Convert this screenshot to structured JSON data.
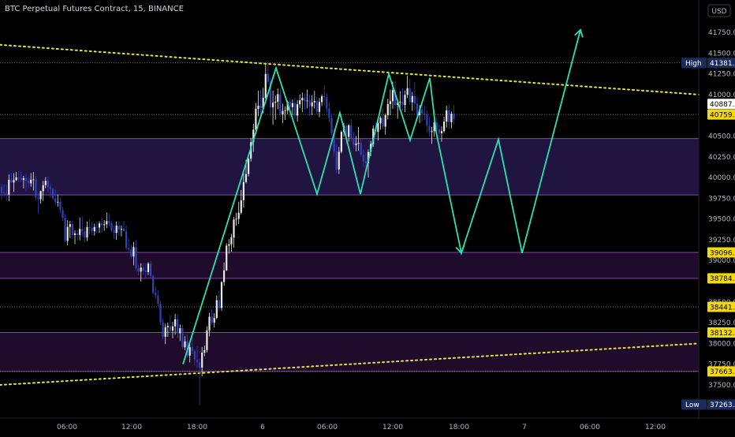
{
  "header": {
    "title": "BTC Perpetual Futures Contract, 15, BINANCE"
  },
  "axis": {
    "currency": "USD"
  },
  "chart_data": {
    "type": "candlestick",
    "symbol": "BTC Perpetual Futures Contract",
    "interval": "15",
    "exchange": "BINANCE",
    "ylim": [
      37150,
      41940
    ],
    "y_ticks": [
      41750,
      41500,
      41250,
      41000,
      40750,
      40500,
      40250,
      40000,
      39750,
      39500,
      39250,
      39000,
      38750,
      38500,
      38250,
      38000,
      37750,
      37500
    ],
    "y_tick_labels": [
      "41750.0",
      "41500.0",
      "41250.0",
      "41000.0",
      "40750.0",
      "40500.0",
      "40250.0",
      "40000.0",
      "39750.0",
      "39500.0",
      "39250.0",
      "39000.0",
      "38750.0",
      "38500.0",
      "38250.0",
      "38000.0",
      "37750.0",
      "37500.0"
    ],
    "x_tick_labels": [
      "06:00",
      "12:00",
      "18:00",
      "6",
      "06:00",
      "12:00",
      "18:00",
      "7",
      "06:00",
      "12:00"
    ],
    "price_tags": [
      {
        "label": "High",
        "value": "41381.7",
        "price": 41381.7,
        "style": "navy"
      },
      {
        "label": "",
        "value": "40887.3",
        "price": 40887.3,
        "style": "white"
      },
      {
        "label": "",
        "value": "40759.7",
        "price": 40759.7,
        "style": "yellow"
      },
      {
        "label": "",
        "value": "39096.9",
        "price": 39096.9,
        "style": "yellow"
      },
      {
        "label": "",
        "value": "38784.2",
        "price": 38784.2,
        "style": "yellow"
      },
      {
        "label": "",
        "value": "38441.2",
        "price": 38441.2,
        "style": "yellow"
      },
      {
        "label": "",
        "value": "38132.7",
        "price": 38132.7,
        "style": "yellow"
      },
      {
        "label": "",
        "value": "37663.4",
        "price": 37663.4,
        "style": "yellow"
      },
      {
        "label": "Low",
        "value": "37263.4",
        "price": 37263.4,
        "style": "navy"
      }
    ],
    "horizontal_levels": [
      41381.7,
      40759.7,
      38441.2,
      37663.4
    ],
    "zones": [
      {
        "top": 40470,
        "bottom": 39790,
        "color": "#2b1b55"
      },
      {
        "top": 39096.9,
        "bottom": 38784.2,
        "color": "#2a1038"
      },
      {
        "top": 38132.7,
        "bottom": 37663.4,
        "color": "#2a1038"
      }
    ],
    "trendlines": [
      {
        "name": "upper",
        "color": "#e8e23a",
        "points": [
          [
            0,
            41600
          ],
          [
            886,
            41000
          ]
        ]
      },
      {
        "name": "lower",
        "color": "#e8e23a",
        "points": [
          [
            0,
            37500
          ],
          [
            886,
            38000
          ]
        ]
      }
    ],
    "pattern_path": [
      [
        232,
        37750
      ],
      [
        350,
        41320
      ],
      [
        402,
        39800
      ],
      [
        431,
        40780
      ],
      [
        457,
        39800
      ],
      [
        493,
        41250
      ],
      [
        520,
        40450
      ],
      [
        545,
        41200
      ],
      [
        553,
        40550
      ],
      [
        585,
        39090
      ],
      [
        632,
        40460
      ],
      [
        662,
        39090
      ],
      [
        736,
        41780
      ]
    ],
    "pattern_color": "#2de0b2",
    "candles": [
      [
        39887,
        39928,
        39728,
        39817
      ],
      [
        39817,
        39917,
        39762,
        39810
      ],
      [
        39810,
        39912,
        39720,
        39794
      ],
      [
        39794,
        40037,
        39717,
        39973
      ],
      [
        39973,
        40052,
        39935,
        39940
      ],
      [
        39940,
        40053,
        39828,
        39969
      ],
      [
        39969,
        40067,
        39958,
        40001
      ],
      [
        40001,
        40076,
        39944,
        39993
      ],
      [
        39993,
        40068,
        39942,
        39971
      ],
      [
        39971,
        40021,
        39869,
        39992
      ],
      [
        39992,
        40038,
        39831,
        39962
      ],
      [
        39962,
        40004,
        39878,
        39931
      ],
      [
        39931,
        40053,
        39889,
        39974
      ],
      [
        39974,
        40066,
        39844,
        39977
      ],
      [
        39977,
        40023,
        39726,
        39756
      ],
      [
        39756,
        39810,
        39567,
        39739
      ],
      [
        39739,
        39842,
        39685,
        39836
      ],
      [
        39836,
        39960,
        39719,
        39908
      ],
      [
        39908,
        40005,
        39871,
        39961
      ],
      [
        39961,
        40013,
        39821,
        39881
      ],
      [
        39881,
        39938,
        39751,
        39860
      ],
      [
        39860,
        39876,
        39725,
        39749
      ],
      [
        39749,
        39857,
        39665,
        39705
      ],
      [
        39705,
        39795,
        39648,
        39706
      ],
      [
        39706,
        39758,
        39568,
        39606
      ],
      [
        39606,
        39646,
        39478,
        39515
      ],
      [
        39515,
        39563,
        39216,
        39236
      ],
      [
        39236,
        39485,
        39183,
        39405
      ],
      [
        39405,
        39478,
        39270,
        39437
      ],
      [
        39437,
        39480,
        39264,
        39307
      ],
      [
        39307,
        39365,
        39196,
        39327
      ],
      [
        39327,
        39364,
        39247,
        39308
      ],
      [
        39308,
        39520,
        39243,
        39380
      ],
      [
        39380,
        39528,
        39291,
        39352
      ],
      [
        39352,
        39400,
        39219,
        39277
      ],
      [
        39277,
        39470,
        39233,
        39403
      ],
      [
        39403,
        39498,
        39315,
        39391
      ],
      [
        39391,
        39467,
        39305,
        39353
      ],
      [
        39353,
        39444,
        39300,
        39403
      ],
      [
        39403,
        39471,
        39325,
        39398
      ],
      [
        39398,
        39474,
        39333,
        39446
      ],
      [
        39446,
        39521,
        39334,
        39426
      ],
      [
        39426,
        39486,
        39358,
        39436
      ],
      [
        39436,
        39579,
        39390,
        39476
      ],
      [
        39476,
        39563,
        39409,
        39453
      ],
      [
        39453,
        39483,
        39344,
        39360
      ],
      [
        39360,
        39422,
        39260,
        39334
      ],
      [
        39334,
        39470,
        39248,
        39421
      ],
      [
        39421,
        39473,
        39297,
        39371
      ],
      [
        39371,
        39420,
        39290,
        39382
      ],
      [
        39382,
        39474,
        39347,
        39355
      ],
      [
        39355,
        39423,
        39126,
        39150
      ],
      [
        39150,
        39263,
        39100,
        39131
      ],
      [
        39131,
        39191,
        39026,
        39048
      ],
      [
        39048,
        39224,
        38943,
        39162
      ],
      [
        39162,
        39246,
        38872,
        38906
      ],
      [
        38906,
        38948,
        38823,
        38867
      ],
      [
        38867,
        38968,
        38747,
        38914
      ],
      [
        38914,
        38969,
        38827,
        38873
      ],
      [
        38873,
        38968,
        38792,
        38860
      ],
      [
        38860,
        38981,
        38825,
        38962
      ],
      [
        38962,
        38999,
        38785,
        38813
      ],
      [
        38813,
        38833,
        38594,
        38610
      ],
      [
        38610,
        38691,
        38543,
        38580
      ],
      [
        38580,
        38641,
        38450,
        38476
      ],
      [
        38476,
        38516,
        38219,
        38252
      ],
      [
        38252,
        38301,
        38052,
        38081
      ],
      [
        38081,
        38238,
        37993,
        38195
      ],
      [
        38195,
        38250,
        38080,
        38211
      ],
      [
        38211,
        38345,
        38107,
        38154
      ],
      [
        38154,
        38260,
        38062,
        38206
      ],
      [
        38206,
        38358,
        38105,
        38292
      ],
      [
        38292,
        38351,
        38066,
        38123
      ],
      [
        38123,
        38229,
        38031,
        38184
      ],
      [
        38184,
        38226,
        37930,
        37955
      ],
      [
        37955,
        38087,
        37920,
        38026
      ],
      [
        38026,
        38112,
        37829,
        37853
      ],
      [
        37853,
        37995,
        37772,
        37955
      ],
      [
        37955,
        38097,
        37871,
        37906
      ],
      [
        37906,
        37932,
        37737,
        37806
      ],
      [
        37806,
        37963,
        37699,
        37772
      ],
      [
        37772,
        37817,
        37262,
        37709
      ],
      [
        37709,
        37957,
        37605,
        37890
      ],
      [
        37890,
        37974,
        37845,
        37920
      ],
      [
        37920,
        38208,
        37893,
        38157
      ],
      [
        38157,
        38370,
        38085,
        38322
      ],
      [
        38322,
        38412,
        38220,
        38252
      ],
      [
        38252,
        38365,
        38192,
        38306
      ],
      [
        38306,
        38580,
        38293,
        38522
      ],
      [
        38522,
        38638,
        38381,
        38428
      ],
      [
        38428,
        38753,
        38393,
        38740
      ],
      [
        38740,
        38977,
        38694,
        38882
      ],
      [
        38882,
        39208,
        38872,
        39178
      ],
      [
        39178,
        39256,
        39083,
        39196
      ],
      [
        39196,
        39322,
        39104,
        39278
      ],
      [
        39278,
        39525,
        39154,
        39493
      ],
      [
        39493,
        39575,
        39417,
        39502
      ],
      [
        39502,
        39707,
        39440,
        39576
      ],
      [
        39576,
        39849,
        39552,
        39725
      ],
      [
        39725,
        40061,
        39638,
        39947
      ],
      [
        39947,
        40213,
        39931,
        40043
      ],
      [
        40043,
        40269,
        40013,
        40226
      ],
      [
        40226,
        40475,
        40192,
        40426
      ],
      [
        40426,
        40646,
        40310,
        40577
      ],
      [
        40577,
        40899,
        40524,
        40828
      ],
      [
        40828,
        41048,
        40740,
        40866
      ],
      [
        40866,
        41056,
        40743,
        40837
      ],
      [
        40837,
        41081,
        40775,
        40960
      ],
      [
        40960,
        41366,
        40910,
        41249
      ],
      [
        41249,
        41382,
        41119,
        41155
      ],
      [
        41155,
        41207,
        40738,
        40846
      ],
      [
        40846,
        41047,
        40636,
        40902
      ],
      [
        40902,
        40988,
        40697,
        40914
      ],
      [
        40914,
        41072,
        40824,
        41004
      ],
      [
        41004,
        41078,
        40730,
        40761
      ],
      [
        40761,
        40889,
        40654,
        40803
      ],
      [
        40803,
        40859,
        40695,
        40810
      ],
      [
        40810,
        40928,
        40765,
        40912
      ],
      [
        40912,
        40958,
        40727,
        40848
      ],
      [
        40848,
        40941,
        40750,
        40896
      ],
      [
        40896,
        40962,
        40700,
        40748
      ],
      [
        40748,
        40931,
        40673,
        40883
      ],
      [
        40883,
        41002,
        40839,
        40931
      ],
      [
        40931,
        41024,
        40788,
        40960
      ],
      [
        40960,
        41010,
        40819,
        40920
      ],
      [
        40920,
        41059,
        40835,
        40928
      ],
      [
        40928,
        41000,
        40742,
        40859
      ],
      [
        40859,
        40991,
        40752,
        40906
      ],
      [
        40906,
        41044,
        40831,
        40923
      ],
      [
        40923,
        40975,
        40759,
        40792
      ],
      [
        40792,
        40958,
        40725,
        40910
      ],
      [
        40910,
        41003,
        40862,
        40979
      ],
      [
        40979,
        41111,
        40873,
        40968
      ],
      [
        40968,
        41011,
        40781,
        40832
      ],
      [
        40832,
        40906,
        40666,
        40718
      ],
      [
        40718,
        40763,
        40506,
        40536
      ],
      [
        40536,
        40597,
        40260,
        40315
      ],
      [
        40315,
        40397,
        40056,
        40097
      ],
      [
        40097,
        40369,
        40043,
        40311
      ],
      [
        40311,
        40568,
        40292,
        40550
      ],
      [
        40550,
        40658,
        40493,
        40625
      ],
      [
        40625,
        40650,
        40396,
        40490
      ],
      [
        40490,
        40644,
        40434,
        40630
      ],
      [
        40630,
        40704,
        40436,
        40471
      ],
      [
        40471,
        40548,
        40348,
        40391
      ],
      [
        40391,
        40501,
        40316,
        40408
      ],
      [
        40408,
        40608,
        40325,
        40418
      ],
      [
        40418,
        40469,
        40251,
        40278
      ],
      [
        40278,
        40340,
        40130,
        40195
      ],
      [
        40195,
        40301,
        40098,
        40172
      ],
      [
        40172,
        40339,
        39999,
        40309
      ],
      [
        40309,
        40444,
        40257,
        40404
      ],
      [
        40404,
        40628,
        40370,
        40590
      ],
      [
        40590,
        40660,
        40465,
        40553
      ],
      [
        40553,
        40720,
        40448,
        40656
      ],
      [
        40656,
        40740,
        40578,
        40720
      ],
      [
        40720,
        40840,
        40582,
        40614
      ],
      [
        40614,
        40773,
        40516,
        40751
      ],
      [
        40751,
        40949,
        40700,
        40886
      ],
      [
        40886,
        41060,
        40749,
        40920
      ],
      [
        40920,
        41157,
        40826,
        41053
      ],
      [
        41053,
        41162,
        40835,
        40875
      ],
      [
        40875,
        40947,
        40708,
        40904
      ],
      [
        40904,
        41042,
        40816,
        40913
      ],
      [
        40913,
        41076,
        40806,
        40874
      ],
      [
        40874,
        41048,
        40790,
        40997
      ],
      [
        40997,
        41228,
        40958,
        41077
      ],
      [
        41077,
        41190,
        40876,
        40907
      ],
      [
        40907,
        41033,
        40804,
        40982
      ],
      [
        40982,
        41148,
        40812,
        40892
      ],
      [
        40892,
        40976,
        40690,
        40750
      ],
      [
        40750,
        40874,
        40658,
        40822
      ],
      [
        40822,
        40892,
        40675,
        40771
      ],
      [
        40771,
        40868,
        40692,
        40761
      ],
      [
        40761,
        40810,
        40539,
        40624
      ],
      [
        40624,
        40734,
        40495,
        40547
      ],
      [
        40547,
        40610,
        40407,
        40558
      ],
      [
        40558,
        40693,
        40491,
        40664
      ],
      [
        40664,
        40724,
        40545,
        40586
      ],
      [
        40586,
        40639,
        40459,
        40533
      ],
      [
        40533,
        40617,
        40431,
        40559
      ],
      [
        40559,
        40732,
        40538,
        40674
      ],
      [
        40674,
        40868,
        40603,
        40810
      ],
      [
        40810,
        40875,
        40586,
        40667
      ],
      [
        40667,
        40797,
        40594,
        40769
      ],
      [
        40769,
        40875,
        40639,
        40703
      ]
    ]
  }
}
